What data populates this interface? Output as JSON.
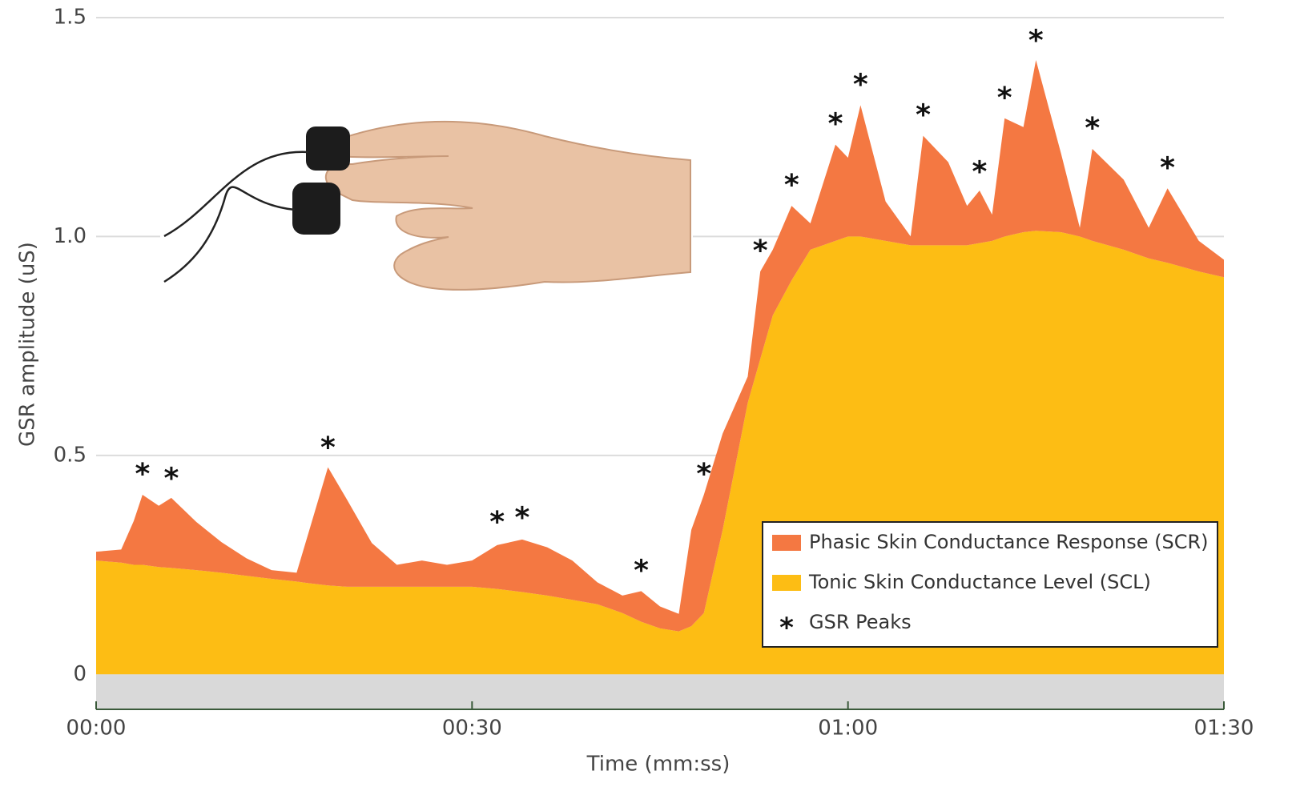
{
  "chart_data": {
    "type": "stacked_area",
    "x_label": "Time (mm:ss)",
    "y_label": "GSR amplitude (uS)",
    "x": [
      0,
      2,
      3,
      3.7,
      5,
      6,
      8,
      10,
      12,
      14,
      16,
      17,
      18.5,
      20,
      22,
      24,
      26,
      28,
      30,
      32,
      34,
      36,
      38,
      40,
      42,
      43.5,
      45,
      46.5,
      47.5,
      48.5,
      50,
      52,
      53,
      54,
      55.5,
      57,
      59,
      60,
      61,
      63,
      65,
      66,
      68,
      69.5,
      70.5,
      71.5,
      72.5,
      74,
      75,
      77,
      78.5,
      79.5,
      82,
      84,
      85.5,
      88,
      90
    ],
    "series": [
      {
        "name": "Tonic Skin Conductance Level (SCL)",
        "color": "#fdbd14",
        "values": [
          0.26,
          0.255,
          0.25,
          0.25,
          0.245,
          0.243,
          0.238,
          0.232,
          0.225,
          0.218,
          0.212,
          0.208,
          0.203,
          0.2,
          0.2,
          0.2,
          0.2,
          0.2,
          0.2,
          0.195,
          0.188,
          0.18,
          0.17,
          0.16,
          0.14,
          0.12,
          0.105,
          0.098,
          0.11,
          0.14,
          0.33,
          0.62,
          0.72,
          0.82,
          0.9,
          0.97,
          0.99,
          1.0,
          1.0,
          0.99,
          0.98,
          0.98,
          0.98,
          0.98,
          0.985,
          0.99,
          1.0,
          1.01,
          1.013,
          1.01,
          1.0,
          0.99,
          0.97,
          0.95,
          0.94,
          0.92,
          0.907
        ]
      },
      {
        "name": "Phasic Skin Conductance Response (SCR)",
        "color": "#f47842",
        "values": [
          0.02,
          0.03,
          0.1,
          0.16,
          0.14,
          0.16,
          0.11,
          0.07,
          0.04,
          0.02,
          0.02,
          0.12,
          0.27,
          0.2,
          0.1,
          0.05,
          0.06,
          0.05,
          0.06,
          0.1,
          0.12,
          0.11,
          0.09,
          0.05,
          0.04,
          0.07,
          0.05,
          0.04,
          0.22,
          0.27,
          0.22,
          0.06,
          0.2,
          0.15,
          0.17,
          0.06,
          0.22,
          0.18,
          0.3,
          0.09,
          0.02,
          0.25,
          0.19,
          0.09,
          0.12,
          0.06,
          0.27,
          0.24,
          0.39,
          0.18,
          0.02,
          0.21,
          0.16,
          0.07,
          0.17,
          0.07,
          0.04
        ]
      }
    ],
    "peaks": {
      "name": "GSR Peaks",
      "marker": "*",
      "x": [
        3.7,
        6,
        18.5,
        32,
        34,
        43.5,
        48.5,
        53,
        55.5,
        59,
        61,
        66,
        70.5,
        72.5,
        75,
        79.5,
        85.5
      ],
      "values": [
        0.41,
        0.4,
        0.47,
        0.3,
        0.31,
        0.19,
        0.41,
        0.92,
        1.07,
        1.21,
        1.3,
        1.23,
        1.1,
        1.27,
        1.4,
        1.2,
        1.11
      ]
    },
    "xlim": [
      0,
      90
    ],
    "xticks": [
      {
        "value": 0,
        "label": "00:00"
      },
      {
        "value": 30,
        "label": "00:30"
      },
      {
        "value": 60,
        "label": "01:00"
      },
      {
        "value": 90,
        "label": "01:30"
      }
    ],
    "ylim": [
      -0.08,
      1.5
    ],
    "yticks": [
      0,
      0.5,
      {
        "value": 1,
        "label": "1.0"
      },
      {
        "value": 1.5,
        "label": "1.5"
      }
    ],
    "grid": true,
    "legend": "lower right"
  }
}
